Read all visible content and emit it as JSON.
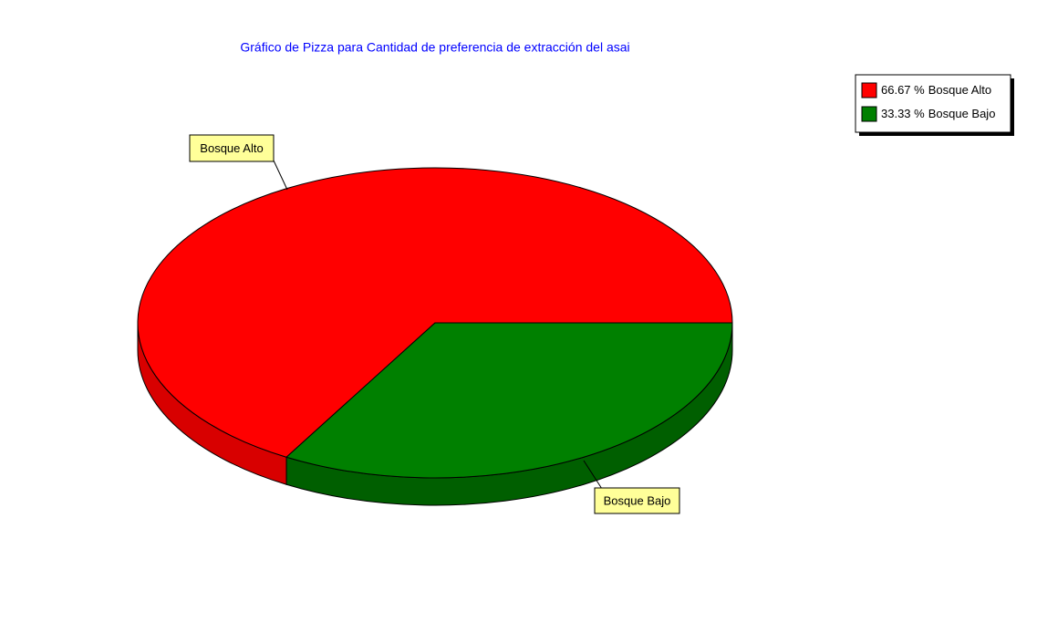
{
  "chart_data": {
    "type": "pie",
    "title": "Gráfico de Pizza para Cantidad de preferencia de extracción del asai",
    "categories": [
      "Bosque Alto",
      "Bosque Bajo"
    ],
    "values": [
      66.67,
      33.33
    ],
    "value_labels": [
      "66.67 %",
      "33.33 %"
    ],
    "colors": [
      "#ff0000",
      "#008000"
    ],
    "side_colors": [
      "#d80000",
      "#005f00"
    ],
    "legend": "top-right"
  }
}
